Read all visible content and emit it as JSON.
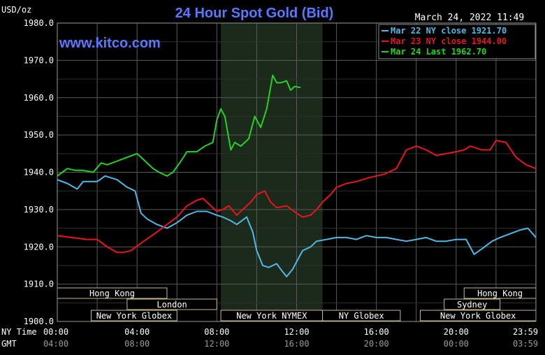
{
  "chart_data": {
    "type": "line",
    "title": "24 Hour Spot Gold (Bid)",
    "ylabel": "USD/oz",
    "timestamp": "March 24, 2022 11:49",
    "watermark": "www.kitco.com",
    "ylim": [
      1900,
      1980
    ],
    "yticks": [
      "1980.0",
      "1970.0",
      "1960.0",
      "1950.0",
      "1940.0",
      "1930.0",
      "1920.0",
      "1910.0",
      "1900.0"
    ],
    "xlim": [
      0,
      24
    ],
    "row_labels": {
      "ny": "NY Time",
      "gmt": "GMT"
    },
    "ny_ticks": [
      "00:00",
      "04:00",
      "08:00",
      "12:00",
      "16:00",
      "20:00",
      "23:59"
    ],
    "gmt_ticks": [
      "04:00",
      "08:00",
      "12:00",
      "16:00",
      "20:00",
      "00:00",
      "03:59"
    ],
    "tick_hours": [
      0,
      4,
      8,
      12,
      16,
      20,
      23.98
    ],
    "grid": true,
    "legend_position": "top-right",
    "sessions": [
      {
        "name": "Hong Kong",
        "start": 0,
        "end": 5.5,
        "row": 0
      },
      {
        "name": "London",
        "start": 3.5,
        "end": 8,
        "row": 1
      },
      {
        "name": "New York Globex",
        "start": 1.7,
        "end": 6,
        "row": 2
      },
      {
        "name": "New York NYMEX",
        "start": 8.2,
        "end": 13.3,
        "row": 2
      },
      {
        "name": "NY Globex",
        "start": 13.3,
        "end": 17.2,
        "row": 2
      },
      {
        "name": "Hong Kong",
        "start": 20.4,
        "end": 24,
        "row": 0
      },
      {
        "name": "Sydney",
        "start": 19.4,
        "end": 22.2,
        "row": 1
      },
      {
        "name": "New York Globex",
        "start": 18.2,
        "end": 24,
        "row": 2
      }
    ],
    "highlight": {
      "start": 8.2,
      "end": 13.3
    },
    "series": [
      {
        "name": "Mar 22 NY close 1921.70",
        "color": "#4fb9e6",
        "x": [
          0,
          0.5,
          1.0,
          1.3,
          2.0,
          2.4,
          3.0,
          3.5,
          3.9,
          4.2,
          4.5,
          5.0,
          5.5,
          6.0,
          6.5,
          7.0,
          7.5,
          8.0,
          8.3,
          8.7,
          9.0,
          9.5,
          9.8,
          10.0,
          10.3,
          10.6,
          11.0,
          11.2,
          11.5,
          11.8,
          12.0,
          12.3,
          12.7,
          13.0,
          13.5,
          14.0,
          14.5,
          15.0,
          15.5,
          16.0,
          16.5,
          17.0,
          17.5,
          18.0,
          18.5,
          19.0,
          19.5,
          20.0,
          20.5,
          20.9,
          21.3,
          21.8,
          22.2,
          22.7,
          23.2,
          23.6,
          24.0
        ],
        "y": [
          1938,
          1937,
          1935.5,
          1937.5,
          1937.5,
          1939,
          1938,
          1936,
          1935,
          1929,
          1927.5,
          1926,
          1925,
          1926.5,
          1928.5,
          1929.5,
          1929.5,
          1928.5,
          1928,
          1927,
          1926,
          1928,
          1924,
          1919,
          1915,
          1914.5,
          1915.5,
          1914,
          1912,
          1914,
          1916,
          1919,
          1920,
          1921.5,
          1922,
          1922.5,
          1922.5,
          1922,
          1923,
          1922.5,
          1922.5,
          1922,
          1921.5,
          1922,
          1922.5,
          1921.5,
          1921.5,
          1922,
          1922,
          1918,
          1919.5,
          1921.5,
          1922.5,
          1923.5,
          1924.5,
          1925,
          1922.5
        ]
      },
      {
        "name": "Mar 23 NY close 1944.00",
        "color": "#e8161a",
        "x": [
          0,
          0.7,
          1.5,
          2.0,
          2.5,
          3.0,
          3.3,
          3.7,
          4.2,
          4.6,
          5.0,
          5.5,
          6.0,
          6.5,
          7.0,
          7.3,
          7.6,
          8.0,
          8.3,
          8.6,
          9.0,
          9.3,
          9.7,
          10.0,
          10.4,
          10.7,
          11.0,
          11.5,
          12.0,
          12.3,
          12.7,
          13.0,
          13.3,
          13.7,
          14.0,
          14.5,
          15.0,
          15.3,
          15.6,
          16.0,
          16.4,
          17.0,
          17.5,
          18.0,
          18.5,
          19.0,
          19.5,
          20.0,
          20.4,
          20.7,
          21.0,
          21.3,
          21.7,
          22.0,
          22.5,
          23.0,
          23.5,
          24.0
        ],
        "y": [
          1923,
          1922.5,
          1922,
          1922,
          1920,
          1918.5,
          1918.5,
          1919,
          1921,
          1922.5,
          1924,
          1926,
          1928,
          1931,
          1932.5,
          1933,
          1931.5,
          1929.5,
          1930,
          1931,
          1928.5,
          1930,
          1932,
          1934,
          1935,
          1932,
          1930.5,
          1931,
          1929,
          1928,
          1928.5,
          1930,
          1932,
          1934,
          1936,
          1937,
          1937.5,
          1938,
          1938.5,
          1939,
          1939.5,
          1941,
          1946,
          1947,
          1946,
          1944.5,
          1945,
          1945.5,
          1946,
          1947,
          1946.5,
          1946,
          1946,
          1948.5,
          1948,
          1944,
          1942,
          1941
        ]
      },
      {
        "name": "Mar 24 Last 1962.70",
        "color": "#22d421",
        "x": [
          0,
          0.5,
          0.9,
          1.3,
          1.8,
          2.2,
          2.5,
          3.0,
          3.5,
          4.0,
          4.4,
          4.8,
          5.1,
          5.5,
          5.8,
          6.2,
          6.5,
          7.0,
          7.4,
          7.8,
          8.0,
          8.2,
          8.4,
          8.7,
          8.9,
          9.2,
          9.6,
          9.9,
          10.2,
          10.5,
          10.8,
          11.0,
          11.2,
          11.5,
          11.7,
          11.9,
          12.2
        ],
        "y": [
          1939,
          1941,
          1940.5,
          1940.5,
          1940,
          1942.5,
          1942,
          1943,
          1944,
          1945,
          1943,
          1941,
          1940,
          1939,
          1940,
          1943,
          1945.5,
          1945.5,
          1947,
          1948,
          1954,
          1957,
          1955,
          1946,
          1948,
          1947,
          1949,
          1955,
          1952,
          1957,
          1966,
          1964,
          1964,
          1964.5,
          1962,
          1963,
          1962.7
        ]
      }
    ]
  }
}
